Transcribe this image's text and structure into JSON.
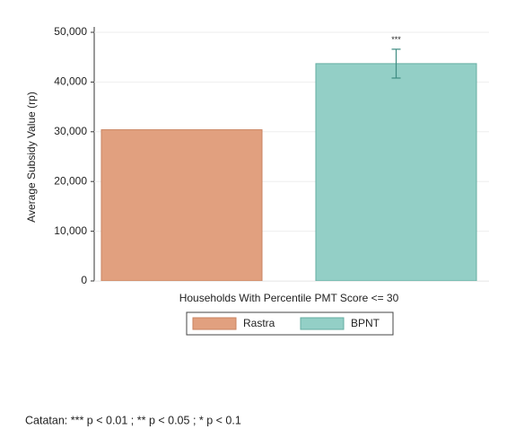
{
  "chart_data": {
    "type": "bar",
    "y_label": "Average Subsidy Value (rp)",
    "x_label": "Households With Percentile PMT Score <= 30",
    "series": [
      {
        "name": "Rastra",
        "color": "#e1a07f",
        "values": [
          30400
        ]
      },
      {
        "name": "BPNT",
        "color": "#93cfc6",
        "values": [
          43700
        ],
        "errors": [
          2900
        ],
        "annotations": [
          "***"
        ]
      }
    ],
    "ylim": [
      0,
      50000
    ],
    "yticks": [
      0,
      {
        "value": 10000,
        "label": "10,000"
      },
      {
        "value": 20000,
        "label": "20,000"
      },
      {
        "value": 30000,
        "label": "30,000"
      },
      {
        "value": 40000,
        "label": "40,000"
      },
      {
        "value": 50000,
        "label": "50,000"
      }
    ],
    "grid": true,
    "legend": "bottom",
    "note": "Catatan: *** p < 0.01 ; ** p < 0.05 ; * p < 0.1"
  }
}
